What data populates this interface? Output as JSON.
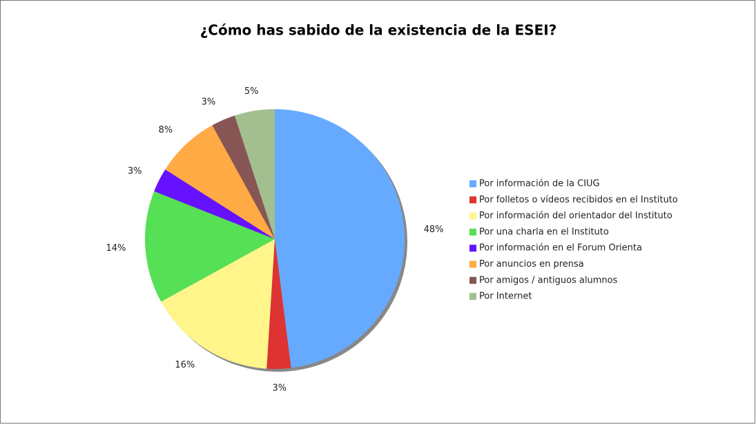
{
  "chart_data": {
    "type": "pie",
    "title": "¿Cómo has sabido de la existencia de la ESEI?",
    "categories": [
      "Por información de la CIUG",
      "Por folletos o vídeos recibidos en el Instituto",
      "Por información del orientador del Instituto",
      "Por una charla en el Instituto",
      "Por información en el Forum Orienta",
      "Por anuncios en prensa",
      "Por amigos / antiguos alumnos",
      "Por Internet"
    ],
    "values": [
      48,
      3,
      16,
      14,
      3,
      8,
      3,
      5
    ],
    "value_labels": [
      "48%",
      "3%",
      "16%",
      "14%",
      "3%",
      "8%",
      "3%",
      "5%"
    ],
    "colors": [
      "#66aaff",
      "#dd3333",
      "#fff58a",
      "#55e055",
      "#6611ff",
      "#ffaa44",
      "#885555",
      "#a3bf8f"
    ],
    "legend": "right"
  }
}
